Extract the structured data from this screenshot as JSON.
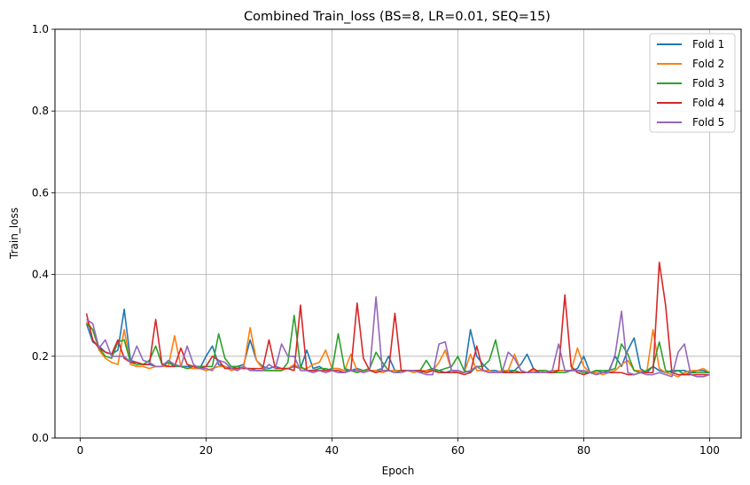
{
  "chart_data": {
    "type": "line",
    "title": "Combined Train_loss (BS=8, LR=0.01, SEQ=15)",
    "xlabel": "Epoch",
    "ylabel": "Train_loss",
    "xlim": [
      -4,
      105
    ],
    "ylim": [
      0,
      1
    ],
    "xticks": [
      0,
      20,
      40,
      60,
      80,
      100
    ],
    "yticks": [
      0.0,
      0.2,
      0.4,
      0.6,
      0.8,
      1.0
    ],
    "xtick_labels": [
      "0",
      "20",
      "40",
      "60",
      "80",
      "100"
    ],
    "ytick_labels": [
      "0.0",
      "0.2",
      "0.4",
      "0.6",
      "0.8",
      "1.0"
    ],
    "grid": true,
    "legend_position": "top-right",
    "x": [
      1,
      2,
      3,
      4,
      5,
      6,
      7,
      8,
      9,
      10,
      11,
      12,
      13,
      14,
      15,
      16,
      17,
      18,
      19,
      20,
      21,
      22,
      23,
      24,
      25,
      26,
      27,
      28,
      29,
      30,
      31,
      32,
      33,
      34,
      35,
      36,
      37,
      38,
      39,
      40,
      41,
      42,
      43,
      44,
      45,
      46,
      47,
      48,
      49,
      50,
      51,
      52,
      53,
      54,
      55,
      56,
      57,
      58,
      59,
      60,
      61,
      62,
      63,
      64,
      65,
      66,
      67,
      68,
      69,
      70,
      71,
      72,
      73,
      74,
      75,
      76,
      77,
      78,
      79,
      80,
      81,
      82,
      83,
      84,
      85,
      86,
      87,
      88,
      89,
      90,
      91,
      92,
      93,
      94,
      95,
      96,
      97,
      98,
      99,
      100
    ],
    "series": [
      {
        "name": "Fold 1",
        "color": "#1f77b4",
        "values": [
          0.28,
          0.235,
          0.225,
          0.21,
          0.205,
          0.215,
          0.315,
          0.19,
          0.185,
          0.18,
          0.18,
          0.175,
          0.175,
          0.185,
          0.18,
          0.175,
          0.175,
          0.175,
          0.17,
          0.2,
          0.225,
          0.18,
          0.175,
          0.17,
          0.175,
          0.18,
          0.24,
          0.19,
          0.175,
          0.17,
          0.175,
          0.17,
          0.17,
          0.175,
          0.17,
          0.215,
          0.17,
          0.175,
          0.165,
          0.17,
          0.17,
          0.165,
          0.165,
          0.17,
          0.165,
          0.165,
          0.165,
          0.17,
          0.2,
          0.165,
          0.165,
          0.165,
          0.165,
          0.16,
          0.165,
          0.17,
          0.165,
          0.16,
          0.165,
          0.165,
          0.16,
          0.265,
          0.2,
          0.18,
          0.165,
          0.165,
          0.16,
          0.165,
          0.165,
          0.18,
          0.205,
          0.17,
          0.16,
          0.16,
          0.165,
          0.165,
          0.165,
          0.165,
          0.17,
          0.2,
          0.16,
          0.165,
          0.16,
          0.165,
          0.2,
          0.175,
          0.215,
          0.245,
          0.17,
          0.16,
          0.175,
          0.165,
          0.16,
          0.165,
          0.165,
          0.165,
          0.16,
          0.165,
          0.165,
          0.16
        ]
      },
      {
        "name": "Fold 2",
        "color": "#ff7f0e",
        "values": [
          0.285,
          0.265,
          0.215,
          0.195,
          0.185,
          0.18,
          0.265,
          0.18,
          0.175,
          0.175,
          0.17,
          0.175,
          0.175,
          0.175,
          0.25,
          0.175,
          0.17,
          0.17,
          0.17,
          0.165,
          0.17,
          0.175,
          0.175,
          0.165,
          0.17,
          0.175,
          0.27,
          0.19,
          0.17,
          0.165,
          0.165,
          0.165,
          0.17,
          0.18,
          0.17,
          0.17,
          0.18,
          0.185,
          0.215,
          0.17,
          0.17,
          0.165,
          0.205,
          0.165,
          0.165,
          0.165,
          0.165,
          0.16,
          0.165,
          0.165,
          0.165,
          0.165,
          0.16,
          0.165,
          0.165,
          0.165,
          0.185,
          0.215,
          0.165,
          0.16,
          0.16,
          0.205,
          0.165,
          0.165,
          0.165,
          0.16,
          0.165,
          0.165,
          0.205,
          0.165,
          0.16,
          0.165,
          0.165,
          0.16,
          0.165,
          0.165,
          0.165,
          0.165,
          0.22,
          0.175,
          0.16,
          0.16,
          0.155,
          0.16,
          0.165,
          0.18,
          0.19,
          0.165,
          0.165,
          0.16,
          0.265,
          0.17,
          0.16,
          0.155,
          0.15,
          0.16,
          0.165,
          0.165,
          0.17,
          0.16
        ]
      },
      {
        "name": "Fold 3",
        "color": "#2ca02c",
        "values": [
          0.28,
          0.265,
          0.22,
          0.2,
          0.195,
          0.235,
          0.24,
          0.185,
          0.18,
          0.18,
          0.19,
          0.225,
          0.18,
          0.185,
          0.175,
          0.175,
          0.17,
          0.175,
          0.175,
          0.175,
          0.175,
          0.255,
          0.195,
          0.175,
          0.175,
          0.17,
          0.17,
          0.165,
          0.165,
          0.165,
          0.165,
          0.165,
          0.185,
          0.3,
          0.175,
          0.165,
          0.165,
          0.17,
          0.17,
          0.165,
          0.255,
          0.17,
          0.165,
          0.16,
          0.165,
          0.17,
          0.21,
          0.185,
          0.165,
          0.16,
          0.165,
          0.165,
          0.165,
          0.165,
          0.19,
          0.165,
          0.165,
          0.17,
          0.175,
          0.2,
          0.165,
          0.16,
          0.175,
          0.175,
          0.19,
          0.24,
          0.165,
          0.16,
          0.165,
          0.16,
          0.16,
          0.16,
          0.165,
          0.165,
          0.16,
          0.16,
          0.16,
          0.165,
          0.165,
          0.16,
          0.16,
          0.165,
          0.165,
          0.165,
          0.17,
          0.23,
          0.205,
          0.165,
          0.16,
          0.165,
          0.175,
          0.235,
          0.165,
          0.16,
          0.165,
          0.155,
          0.16,
          0.16,
          0.16,
          0.16
        ]
      },
      {
        "name": "Fold 4",
        "color": "#d62728",
        "values": [
          0.305,
          0.24,
          0.22,
          0.21,
          0.205,
          0.24,
          0.195,
          0.185,
          0.185,
          0.18,
          0.18,
          0.29,
          0.18,
          0.175,
          0.175,
          0.22,
          0.18,
          0.175,
          0.17,
          0.175,
          0.2,
          0.19,
          0.17,
          0.17,
          0.17,
          0.17,
          0.17,
          0.17,
          0.17,
          0.24,
          0.17,
          0.17,
          0.17,
          0.165,
          0.325,
          0.165,
          0.165,
          0.165,
          0.165,
          0.165,
          0.165,
          0.16,
          0.165,
          0.33,
          0.195,
          0.165,
          0.16,
          0.165,
          0.165,
          0.305,
          0.165,
          0.165,
          0.165,
          0.165,
          0.16,
          0.165,
          0.16,
          0.16,
          0.16,
          0.16,
          0.155,
          0.16,
          0.225,
          0.165,
          0.16,
          0.16,
          0.16,
          0.16,
          0.16,
          0.16,
          0.16,
          0.17,
          0.16,
          0.16,
          0.16,
          0.165,
          0.35,
          0.175,
          0.16,
          0.155,
          0.16,
          0.155,
          0.16,
          0.16,
          0.16,
          0.16,
          0.155,
          0.155,
          0.16,
          0.16,
          0.16,
          0.43,
          0.325,
          0.16,
          0.155,
          0.155,
          0.155,
          0.155,
          0.155,
          0.155
        ]
      },
      {
        "name": "Fold 5",
        "color": "#9467bd",
        "values": [
          0.29,
          0.28,
          0.22,
          0.24,
          0.2,
          0.2,
          0.2,
          0.185,
          0.225,
          0.19,
          0.185,
          0.175,
          0.175,
          0.19,
          0.18,
          0.175,
          0.225,
          0.18,
          0.17,
          0.17,
          0.165,
          0.19,
          0.185,
          0.17,
          0.165,
          0.175,
          0.165,
          0.165,
          0.165,
          0.18,
          0.17,
          0.23,
          0.2,
          0.2,
          0.165,
          0.165,
          0.16,
          0.165,
          0.16,
          0.165,
          0.16,
          0.16,
          0.165,
          0.165,
          0.16,
          0.165,
          0.345,
          0.165,
          0.165,
          0.16,
          0.16,
          0.165,
          0.165,
          0.16,
          0.155,
          0.155,
          0.23,
          0.235,
          0.165,
          0.165,
          0.16,
          0.165,
          0.175,
          0.165,
          0.16,
          0.16,
          0.16,
          0.21,
          0.195,
          0.165,
          0.16,
          0.16,
          0.16,
          0.16,
          0.165,
          0.23,
          0.165,
          0.165,
          0.165,
          0.165,
          0.16,
          0.155,
          0.16,
          0.16,
          0.205,
          0.31,
          0.16,
          0.155,
          0.16,
          0.155,
          0.155,
          0.16,
          0.155,
          0.15,
          0.21,
          0.23,
          0.155,
          0.15,
          0.15,
          0.155
        ]
      }
    ]
  }
}
